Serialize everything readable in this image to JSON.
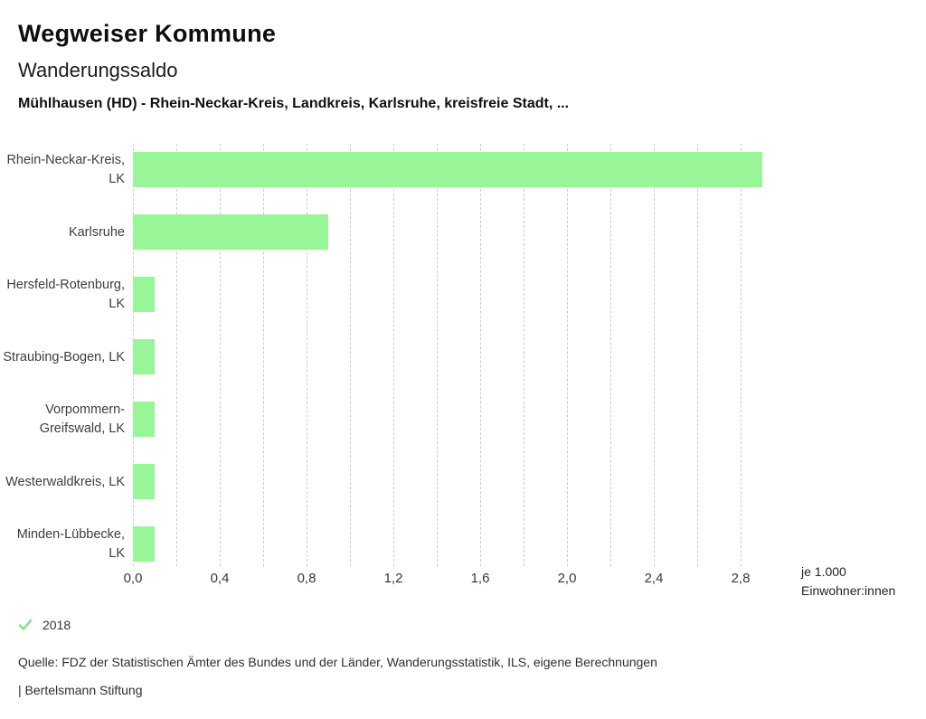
{
  "header": {
    "title": "Wegweiser Kommune",
    "subtitle": "Wanderungssaldo",
    "description": "Mühlhausen (HD) - Rhein-Neckar-Kreis, Landkreis, Karlsruhe, kreisfreie Stadt, ..."
  },
  "chart_data": {
    "type": "bar",
    "orientation": "horizontal",
    "title": "Wanderungssaldo",
    "categories": [
      "Rhein-Neckar-Kreis, LK",
      "Karlsruhe",
      "Hersfeld-Rotenburg, LK",
      "Straubing-Bogen, LK",
      "Vorpommern-Greifswald, LK",
      "Westerwaldkreis, LK",
      "Minden-Lübbecke, LK"
    ],
    "series": [
      {
        "name": "2018",
        "values": [
          2.9,
          0.9,
          0.1,
          0.1,
          0.1,
          0.1,
          0.1
        ]
      }
    ],
    "xlabel": "je 1.000 Einwohner:innen",
    "ylabel": "",
    "xlim": [
      0,
      3.0
    ],
    "x_ticks": [
      "0,0",
      "0,4",
      "0,8",
      "1,2",
      "1,6",
      "2,0",
      "2,4",
      "2,8"
    ],
    "x_tick_values": [
      0,
      0.4,
      0.8,
      1.2,
      1.6,
      2.0,
      2.4,
      2.8
    ],
    "grid": true,
    "grid_step": 0.2,
    "grid_max": 2.8,
    "bar_color": "#98f698",
    "grid_color": "#cbcbcb",
    "legend_position": "bottom-left"
  },
  "unit_label": {
    "line1": "je 1.000",
    "line2": "Einwohner:innen"
  },
  "legend": {
    "year": "2018",
    "check_icon": "checkmark",
    "check_color": "#8ce08c"
  },
  "footer": {
    "source": "Quelle: FDZ der Statistischen Ämter des Bundes und der Länder, Wanderungsstatistik, ILS, eigene Berechnungen",
    "branding": "| Bertelsmann Stiftung"
  }
}
